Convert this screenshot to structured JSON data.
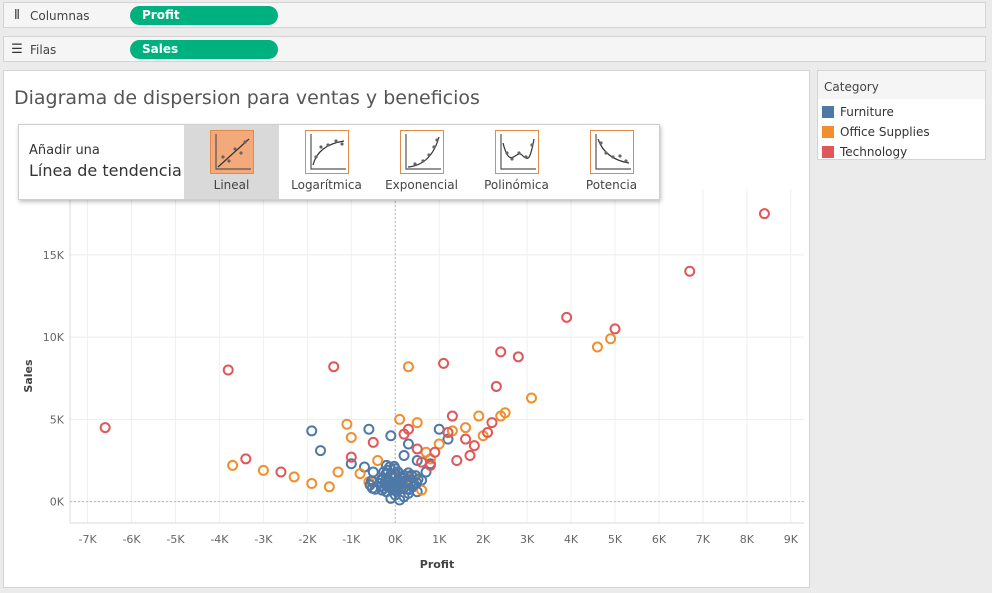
{
  "shelves": {
    "columns": {
      "label": "Columnas",
      "pill": "Profit"
    },
    "rows": {
      "label": "Filas",
      "pill": "Sales"
    }
  },
  "chart_data": {
    "type": "scatter",
    "title": "Diagrama de dispersion para ventas y beneficios",
    "xlabel": "Profit",
    "ylabel": "Sales",
    "xlim": [
      -7400,
      9300
    ],
    "ylim": [
      -1300,
      19000
    ],
    "x_ticks": [
      -7000,
      -6000,
      -5000,
      -4000,
      -3000,
      -2000,
      -1000,
      0,
      1000,
      2000,
      3000,
      4000,
      5000,
      6000,
      7000,
      8000,
      9000
    ],
    "x_tick_labels": [
      "-7K",
      "-6K",
      "-5K",
      "-4K",
      "-3K",
      "-2K",
      "-1K",
      "0K",
      "1K",
      "2K",
      "3K",
      "4K",
      "5K",
      "6K",
      "7K",
      "8K",
      "9K"
    ],
    "y_ticks": [
      0,
      5000,
      10000,
      15000
    ],
    "y_tick_labels": [
      "0K",
      "5K",
      "10K",
      "15K"
    ],
    "grid": true,
    "marker": "open-circle",
    "series": [
      {
        "name": "Furniture",
        "color": "#4e79a7",
        "points": [
          [
            -1900,
            4300
          ],
          [
            -1700,
            3100
          ],
          [
            -1000,
            2300
          ],
          [
            -700,
            2100
          ],
          [
            -600,
            4400
          ],
          [
            -500,
            1800
          ],
          [
            -300,
            1400
          ],
          [
            -200,
            2200
          ],
          [
            -100,
            4000
          ],
          [
            0,
            1200
          ],
          [
            100,
            800
          ],
          [
            200,
            1600
          ],
          [
            300,
            3500
          ],
          [
            400,
            900
          ],
          [
            500,
            2500
          ],
          [
            600,
            1300
          ],
          [
            700,
            1800
          ],
          [
            800,
            2300
          ],
          [
            1000,
            4400
          ],
          [
            1200,
            3800
          ],
          [
            -200,
            600
          ],
          [
            0,
            400
          ],
          [
            200,
            300
          ],
          [
            -100,
            200
          ],
          [
            100,
            100
          ],
          [
            300,
            500
          ],
          [
            -300,
            700
          ],
          [
            500,
            600
          ],
          [
            0,
            2000
          ],
          [
            200,
            2800
          ],
          [
            -500,
            1200
          ]
        ]
      },
      {
        "name": "Office Supplies",
        "color": "#f28e2b",
        "points": [
          [
            -3700,
            2200
          ],
          [
            -3000,
            1900
          ],
          [
            -2300,
            1500
          ],
          [
            -1900,
            1100
          ],
          [
            -1500,
            900
          ],
          [
            -1300,
            1800
          ],
          [
            -1100,
            4700
          ],
          [
            -1000,
            3900
          ],
          [
            -800,
            1700
          ],
          [
            -400,
            2500
          ],
          [
            100,
            5000
          ],
          [
            300,
            8200
          ],
          [
            500,
            4800
          ],
          [
            700,
            3000
          ],
          [
            1000,
            3500
          ],
          [
            1300,
            4300
          ],
          [
            1600,
            4500
          ],
          [
            1900,
            5200
          ],
          [
            2000,
            4000
          ],
          [
            2400,
            5200
          ],
          [
            2500,
            5400
          ],
          [
            3100,
            6300
          ],
          [
            4600,
            9400
          ],
          [
            4900,
            9900
          ],
          [
            -600,
            1200
          ],
          [
            200,
            1000
          ],
          [
            400,
            1500
          ],
          [
            800,
            2600
          ],
          [
            -200,
            1300
          ],
          [
            600,
            700
          ]
        ]
      },
      {
        "name": "Technology",
        "color": "#e15759",
        "points": [
          [
            -6600,
            4500
          ],
          [
            -3800,
            8000
          ],
          [
            -3400,
            2600
          ],
          [
            -2600,
            1800
          ],
          [
            -1400,
            8200
          ],
          [
            -1000,
            2700
          ],
          [
            -500,
            3600
          ],
          [
            0,
            1500
          ],
          [
            300,
            4400
          ],
          [
            500,
            3200
          ],
          [
            800,
            2200
          ],
          [
            1100,
            8400
          ],
          [
            1200,
            4200
          ],
          [
            1300,
            5200
          ],
          [
            1600,
            3800
          ],
          [
            1700,
            2800
          ],
          [
            2200,
            4800
          ],
          [
            2300,
            7000
          ],
          [
            2400,
            9100
          ],
          [
            2800,
            8800
          ],
          [
            3900,
            11200
          ],
          [
            5000,
            10500
          ],
          [
            6700,
            14000
          ],
          [
            8400,
            17500
          ],
          [
            200,
            4100
          ],
          [
            600,
            2400
          ],
          [
            900,
            3000
          ],
          [
            1400,
            2500
          ],
          [
            1800,
            3400
          ],
          [
            2100,
            4200
          ]
        ]
      }
    ]
  },
  "trendline": {
    "intro_small": "Añadir una",
    "intro_large": "Línea de tendencia",
    "options": [
      "Lineal",
      "Logarítmica",
      "Exponencial",
      "Polinómica",
      "Potencia"
    ],
    "selected": "Lineal"
  },
  "legend": {
    "title": "Category",
    "items": [
      {
        "label": "Furniture",
        "color": "#4e79a7"
      },
      {
        "label": "Office Supplies",
        "color": "#f28e2b"
      },
      {
        "label": "Technology",
        "color": "#e15759"
      }
    ]
  }
}
